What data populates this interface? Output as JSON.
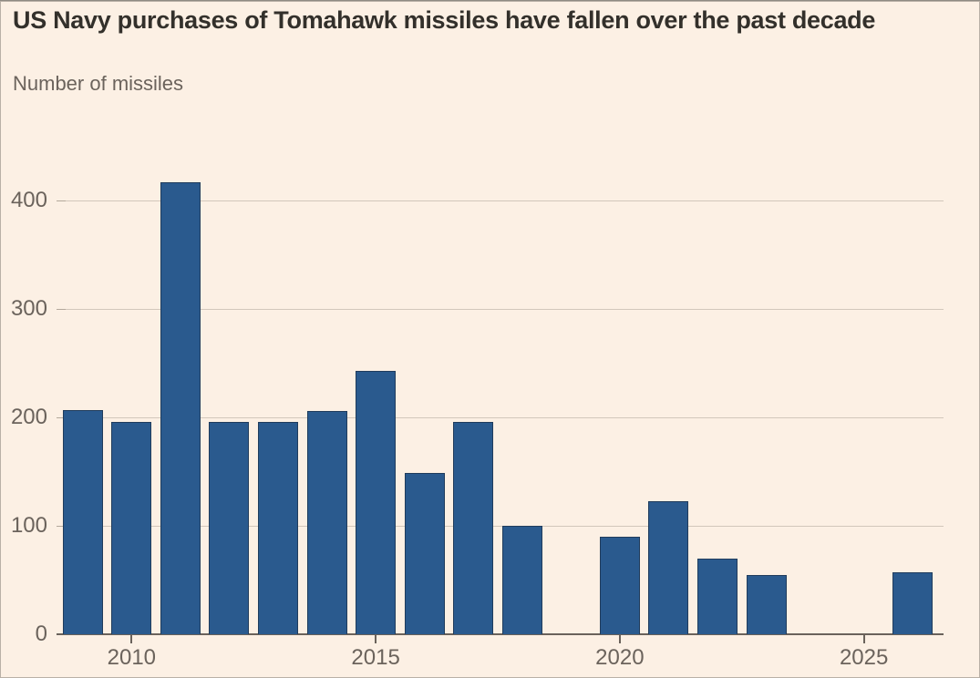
{
  "header": {
    "title": "US Navy purchases of Tomahawk missiles have fallen over the past decade",
    "subtitle": "Number of missiles"
  },
  "chart_data": {
    "type": "bar",
    "title": "US Navy purchases of Tomahawk missiles have fallen over the past decade",
    "ylabel": "Number of missiles",
    "xlabel": "",
    "categories": [
      2009,
      2010,
      2011,
      2012,
      2013,
      2014,
      2015,
      2016,
      2017,
      2018,
      2019,
      2020,
      2021,
      2022,
      2023,
      2024,
      2025,
      2026
    ],
    "values": [
      207,
      196,
      417,
      196,
      196,
      206,
      243,
      149,
      196,
      100,
      0,
      90,
      123,
      70,
      55,
      0,
      0,
      57
    ],
    "y_ticks": [
      0,
      100,
      200,
      300,
      400
    ],
    "x_tick_labels": [
      "2010",
      "2015",
      "2020",
      "2025"
    ],
    "ylim": [
      0,
      470
    ],
    "grid": "horizontal-only",
    "legend": "none",
    "colors": {
      "bar": "#2A5A8E",
      "bar_outline": "rgba(20,25,30,0.45)",
      "background": "#FCF0E4",
      "gridline": "#D2C7BB",
      "axis_line": "#6A625B",
      "title_text": "#33302B",
      "label_text": "#6B635C"
    }
  }
}
